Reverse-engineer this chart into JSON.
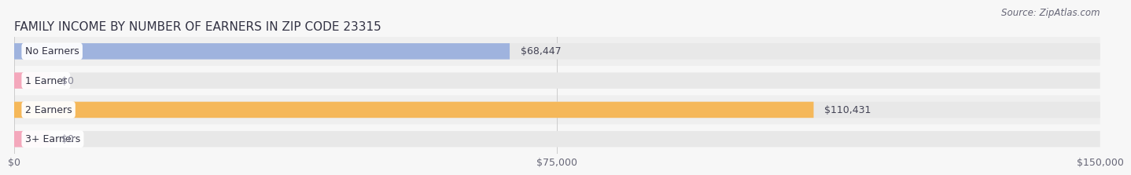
{
  "title": "FAMILY INCOME BY NUMBER OF EARNERS IN ZIP CODE 23315",
  "source": "Source: ZipAtlas.com",
  "categories": [
    "No Earners",
    "1 Earner",
    "2 Earners",
    "3+ Earners"
  ],
  "values": [
    68447,
    0,
    110431,
    0
  ],
  "bar_colors": [
    "#9fb3de",
    "#f4a8bc",
    "#f5b85a",
    "#f4a8bc"
  ],
  "value_labels": [
    "$68,447",
    "$0",
    "$110,431",
    "$0"
  ],
  "xlim": [
    0,
    150000
  ],
  "x_ticks": [
    0,
    75000,
    150000
  ],
  "x_tick_labels": [
    "$0",
    "$75,000",
    "$150,000"
  ],
  "background_color": "#f7f7f7",
  "bar_background_color": "#e8e8e8",
  "row_bg_colors": [
    "#f0f0f0",
    "#f7f7f7",
    "#f0f0f0",
    "#f7f7f7"
  ],
  "title_fontsize": 11,
  "tick_fontsize": 9,
  "label_fontsize": 9,
  "source_fontsize": 8.5,
  "bar_height": 0.55,
  "min_bar_val": 5000
}
